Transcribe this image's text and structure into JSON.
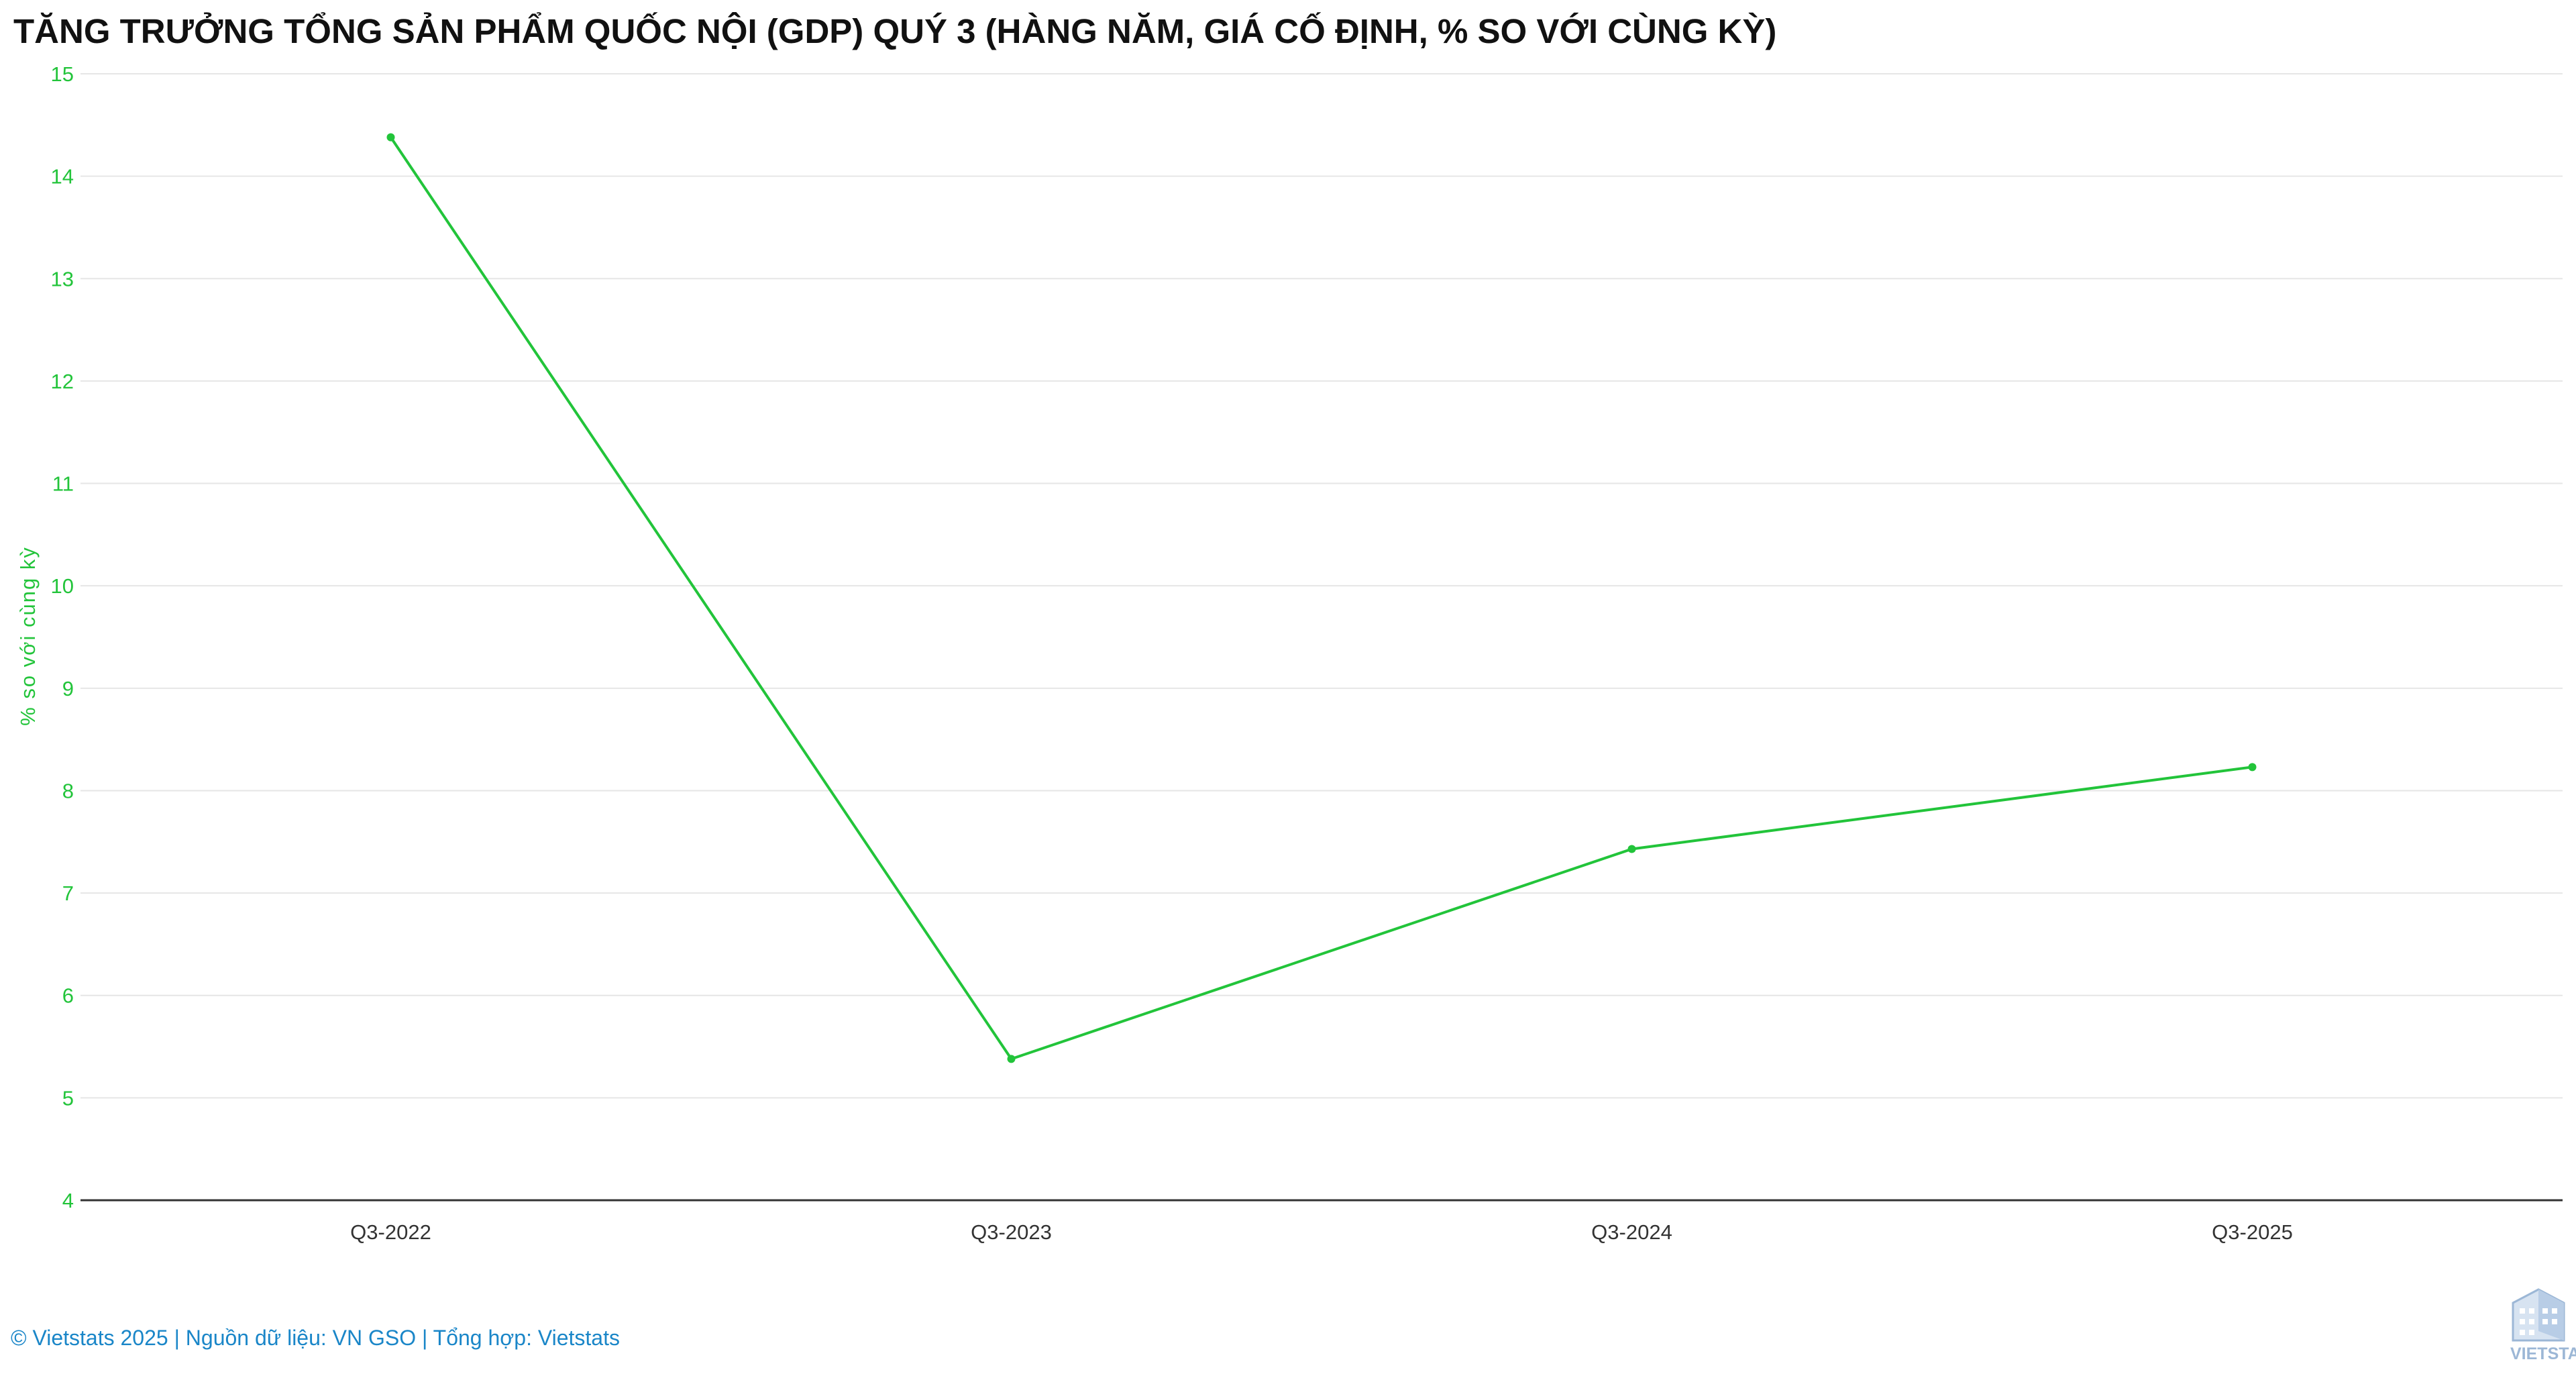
{
  "chart_data": {
    "type": "line",
    "title": "TĂNG TRƯỞNG TỔNG SẢN PHẨM QUỐC NỘI (GDP) QUÝ 3 (HÀNG NĂM, GIÁ CỐ ĐỊNH, % SO VỚI CÙNG KỲ)",
    "categories": [
      "Q3-2022",
      "Q3-2023",
      "Q3-2024",
      "Q3-2025"
    ],
    "series": [
      {
        "values": [
          14.38,
          5.38,
          7.43,
          8.23
        ]
      }
    ],
    "ylabel": "% so với cùng kỳ",
    "xlabel": "",
    "ylim": [
      4,
      15
    ],
    "yticks": [
      4,
      5,
      6,
      7,
      8,
      9,
      10,
      11,
      12,
      13,
      14,
      15
    ],
    "grid": true,
    "legend": "none",
    "color": "#22c43a"
  },
  "footer": {
    "credit": "© Vietstats 2025 | Nguồn dữ liệu: VN GSO | Tổng hợp: Vietstats"
  },
  "logo": {
    "text": "VIETSTATS",
    "icon": "building-logo-icon",
    "color": "#9cb7d6"
  }
}
